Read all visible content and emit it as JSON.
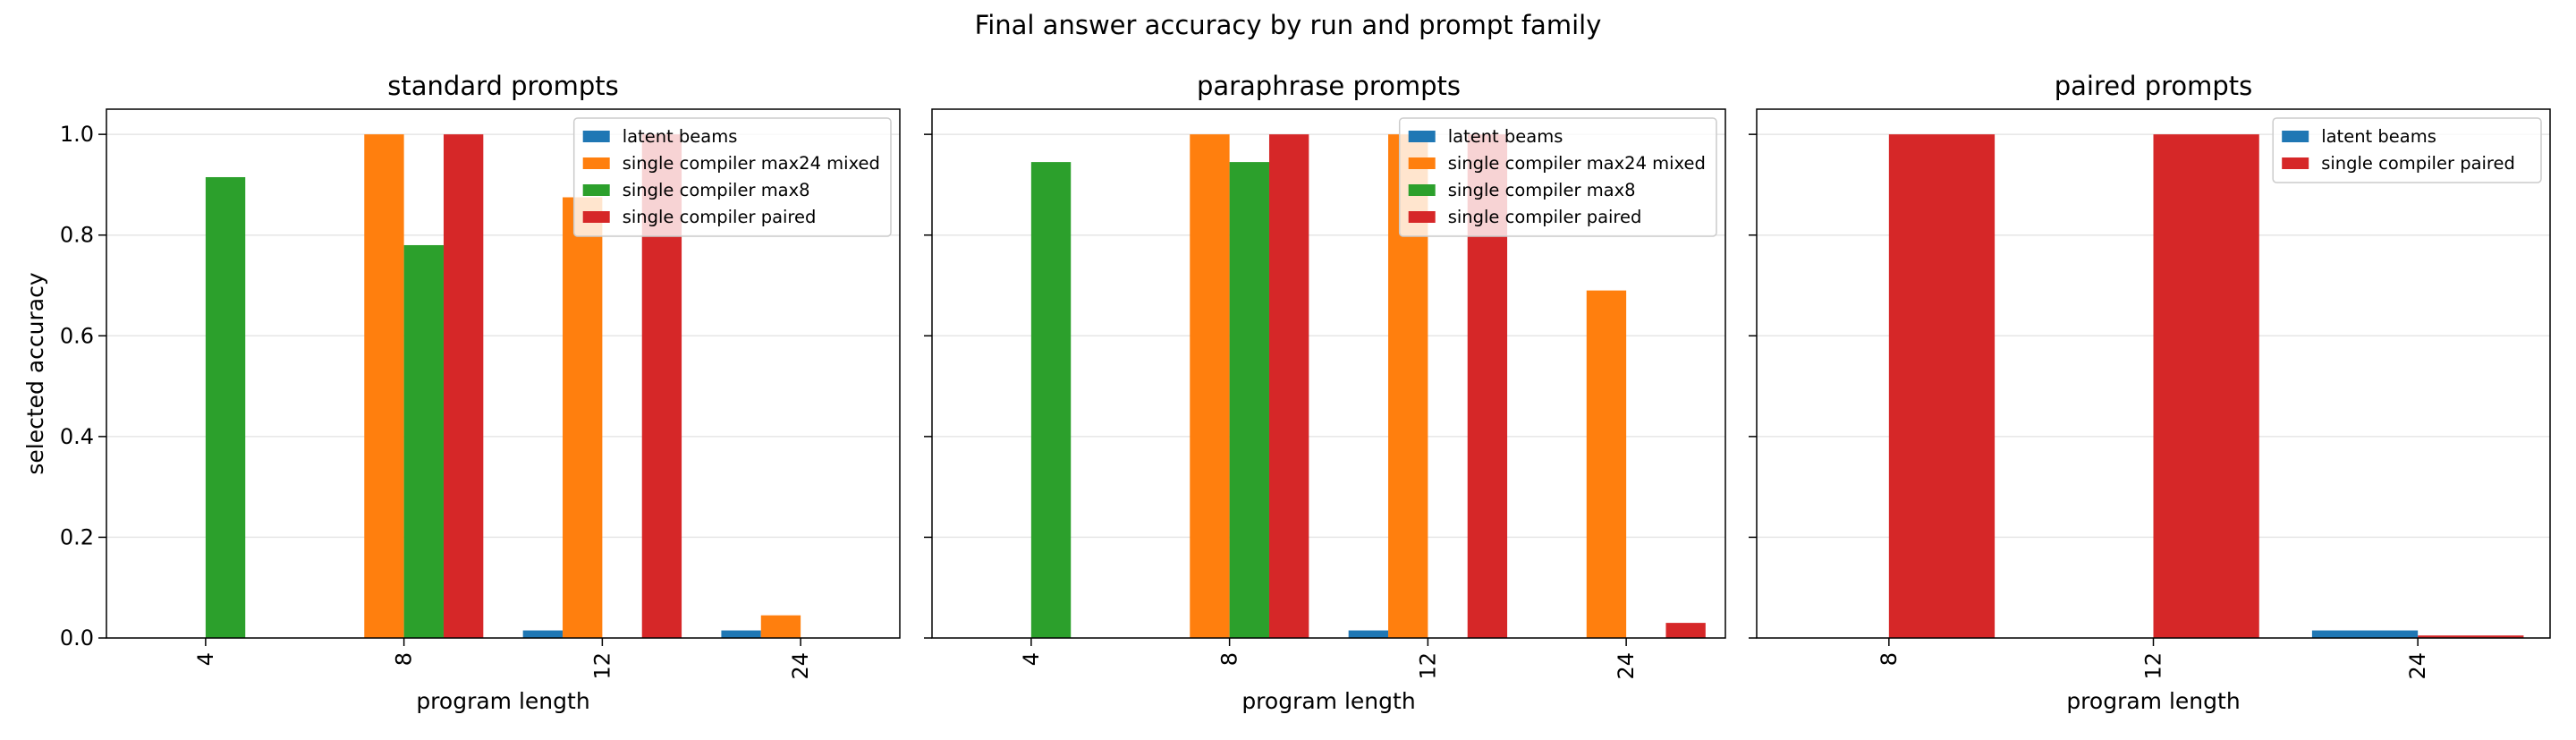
{
  "figure": {
    "title": "Final answer accuracy by run and prompt family"
  },
  "colors": {
    "latent beams": "#1f77b4",
    "single compiler max24 mixed": "#ff7f0e",
    "single compiler max8": "#2ca02c",
    "single compiler paired": "#d62728"
  },
  "chart_data": [
    {
      "type": "bar",
      "title": "standard prompts",
      "xlabel": "program length",
      "ylabel": "selected accuracy",
      "ylim": [
        0,
        1.05
      ],
      "yticks": [
        "0.0",
        "0.2",
        "0.4",
        "0.6",
        "0.8",
        "1.0"
      ],
      "grid": "horizontal",
      "legend_position": "top-right",
      "categories": [
        "4",
        "8",
        "12",
        "24"
      ],
      "series": [
        {
          "name": "latent beams",
          "values": [
            null,
            null,
            0.015,
            0.015
          ]
        },
        {
          "name": "single compiler max24 mixed",
          "values": [
            null,
            1.0,
            0.875,
            0.045
          ]
        },
        {
          "name": "single compiler max8",
          "values": [
            0.915,
            0.78,
            null,
            null
          ]
        },
        {
          "name": "single compiler paired",
          "values": [
            null,
            1.0,
            1.0,
            null
          ]
        }
      ]
    },
    {
      "type": "bar",
      "title": "paraphrase prompts",
      "xlabel": "program length",
      "ylabel": "",
      "ylim": [
        0,
        1.05
      ],
      "yticks": [
        "0.0",
        "0.2",
        "0.4",
        "0.6",
        "0.8",
        "1.0"
      ],
      "grid": "horizontal",
      "legend_position": "top-right",
      "categories": [
        "4",
        "8",
        "12",
        "24"
      ],
      "series": [
        {
          "name": "latent beams",
          "values": [
            null,
            null,
            0.015,
            null
          ]
        },
        {
          "name": "single compiler max24 mixed",
          "values": [
            null,
            1.0,
            1.0,
            0.69
          ]
        },
        {
          "name": "single compiler max8",
          "values": [
            0.945,
            0.945,
            null,
            null
          ]
        },
        {
          "name": "single compiler paired",
          "values": [
            null,
            1.0,
            1.0,
            0.03
          ]
        }
      ]
    },
    {
      "type": "bar",
      "title": "paired prompts",
      "xlabel": "program length",
      "ylabel": "",
      "ylim": [
        0,
        1.05
      ],
      "yticks": [
        "0.0",
        "0.2",
        "0.4",
        "0.6",
        "0.8",
        "1.0"
      ],
      "grid": "horizontal",
      "legend_position": "top-right",
      "categories": [
        "8",
        "12",
        "24"
      ],
      "series": [
        {
          "name": "latent beams",
          "values": [
            null,
            null,
            0.015
          ]
        },
        {
          "name": "single compiler paired",
          "values": [
            1.0,
            1.0,
            0.005
          ]
        }
      ]
    }
  ]
}
